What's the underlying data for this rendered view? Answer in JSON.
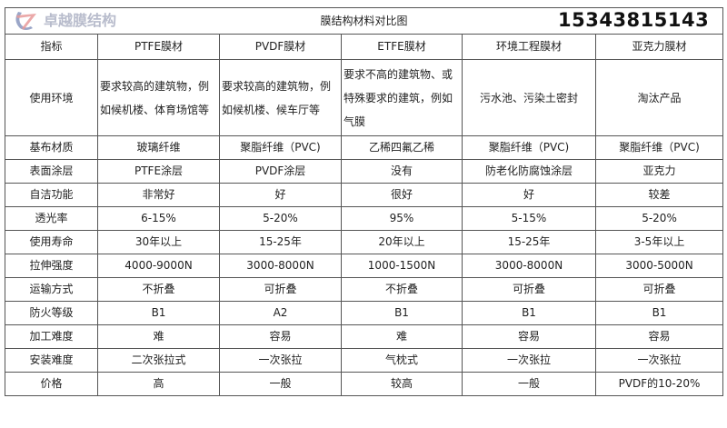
{
  "title": "膜结构材料对比图",
  "headers": [
    "指标",
    "PTFE膜材",
    "PVDF膜材",
    "ETFE膜材",
    "环境工程膜材",
    "亚克力膜材"
  ],
  "rows": [
    [
      "使用环境",
      "要求较高的建筑物，例如候机楼、体育场馆等",
      "要求较高的建筑物，例如候机楼、候车厅等",
      "要求不高的建筑物、或特殊要求的建筑，例如气膜",
      "污水池、污染土密封",
      "淘汰产品"
    ],
    [
      "基布材质",
      "玻璃纤维",
      "聚脂纤维（PVC)",
      "乙稀四氟乙稀",
      "聚脂纤维（PVC)",
      "聚脂纤维（PVC)"
    ],
    [
      "表面涂层",
      "PTFE涂层",
      "PVDF涂层",
      "没有",
      "防老化防腐蚀涂层",
      "亚克力"
    ],
    [
      "自洁功能",
      "非常好",
      "好",
      "很好",
      "好",
      "较差"
    ],
    [
      "透光率",
      "6-15%",
      "5-20%",
      "95%",
      "5-15%",
      "5-20%"
    ],
    [
      "使用寿命",
      "30年以上",
      "15-25年",
      "20年以上",
      "15-25年",
      "3-5年以上"
    ],
    [
      "拉伸强度",
      "4000-9000N",
      "3000-8000N",
      "1000-1500N",
      "3000-8000N",
      "3000-5000N"
    ],
    [
      "运输方式",
      "不折叠",
      "可折叠",
      "不折叠",
      "可折叠",
      "可折叠"
    ],
    [
      "防火等级",
      "B1",
      "A2",
      "B1",
      "B1",
      "B1"
    ],
    [
      "加工难度",
      "难",
      "容易",
      "难",
      "容易",
      "容易"
    ],
    [
      "安装难度",
      "二次张拉式",
      "一次张拉",
      "气枕式",
      "一次张拉",
      "一次张拉"
    ],
    [
      "价格",
      "高",
      "一般",
      "较高",
      "一般",
      "PVDF的10-20%"
    ]
  ],
  "watermark": {
    "text": "卓越膜结构",
    "phone": "15343815143"
  }
}
